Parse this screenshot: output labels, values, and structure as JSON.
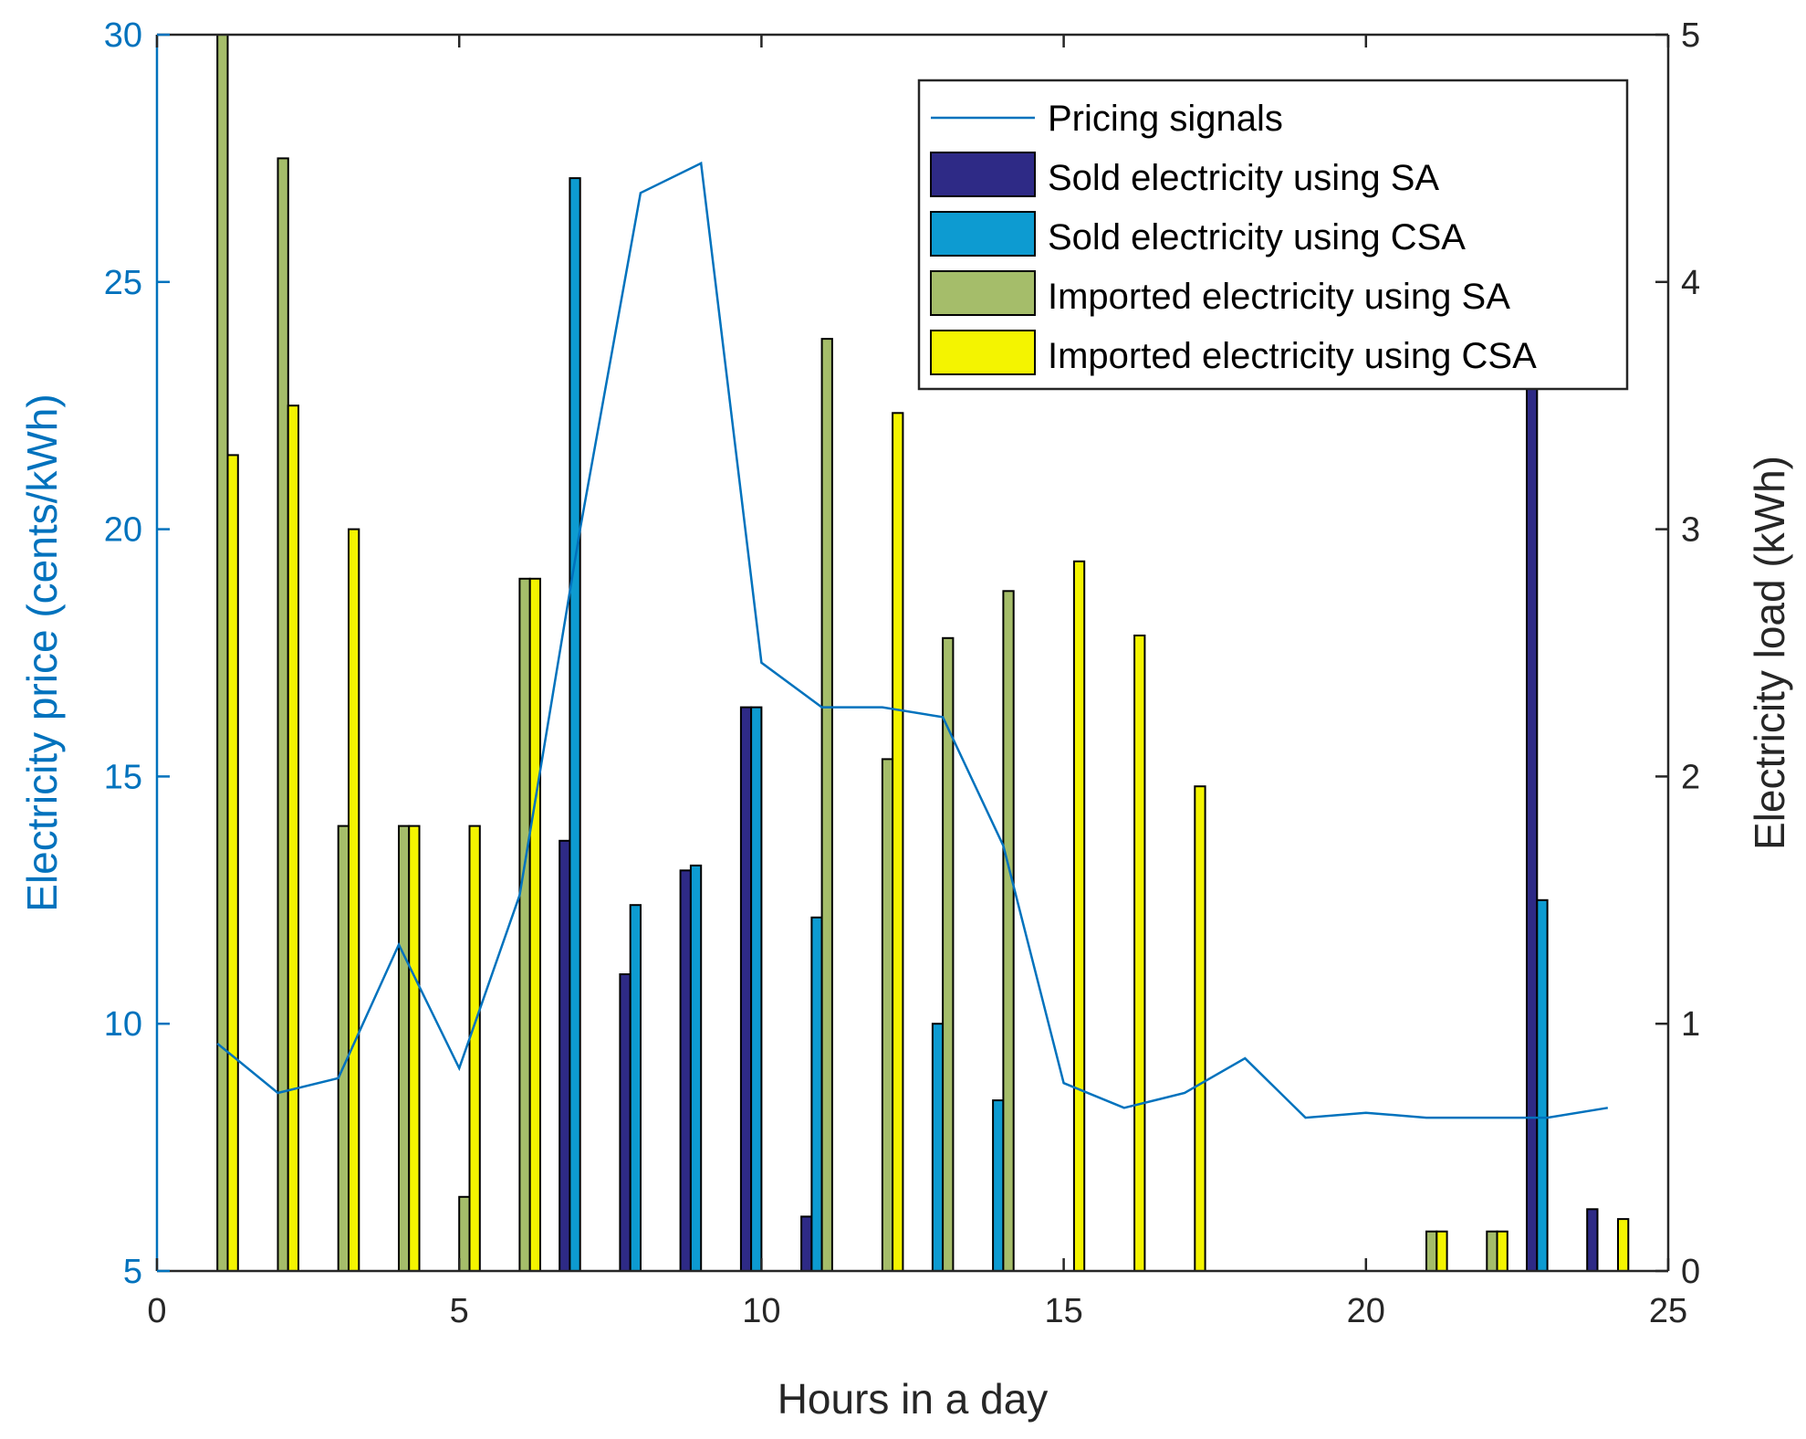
{
  "chart_data": {
    "type": "bar+line",
    "title": "",
    "xlabel": "Hours in a day",
    "ylabel_left": "Electricity price (cents/kWh)",
    "ylabel_right": "Electricity load (kWh)",
    "xlim": [
      0,
      25
    ],
    "ylim_left": [
      5,
      30
    ],
    "ylim_right": [
      0,
      5
    ],
    "x_ticks": [
      "0",
      "5",
      "10",
      "15",
      "20",
      "25"
    ],
    "y_left_ticks": [
      "5",
      "10",
      "15",
      "20",
      "25",
      "30"
    ],
    "y_right_ticks": [
      "0",
      "1",
      "2",
      "3",
      "4",
      "5"
    ],
    "legend_position": "top-right",
    "pricing": {
      "name": "Pricing signals",
      "color": "#0072bd",
      "x": [
        1,
        2,
        3,
        4,
        5,
        6,
        7,
        8,
        9,
        10,
        11,
        12,
        13,
        14,
        15,
        16,
        17,
        18,
        19,
        20,
        21,
        22,
        23,
        24
      ],
      "y": [
        9.6,
        8.6,
        8.9,
        11.6,
        9.1,
        12.6,
        20.0,
        26.8,
        27.4,
        17.3,
        16.4,
        16.4,
        16.2,
        13.6,
        8.8,
        8.3,
        8.6,
        9.3,
        8.1,
        8.2,
        8.1,
        8.1,
        8.1,
        8.3
      ]
    },
    "categories": [
      1,
      2,
      3,
      4,
      5,
      6,
      7,
      8,
      9,
      10,
      11,
      12,
      13,
      14,
      15,
      16,
      17,
      18,
      19,
      20,
      21,
      22,
      23,
      24
    ],
    "series": [
      {
        "name": "Sold electricity using SA",
        "color": "#2e2a86",
        "values": [
          0,
          0,
          0,
          0,
          0,
          0,
          1.74,
          1.2,
          1.62,
          2.28,
          0.22,
          0,
          0,
          0,
          0,
          0,
          0,
          0,
          0,
          0,
          0,
          0,
          3.6,
          0.25
        ]
      },
      {
        "name": "Sold electricity using CSA",
        "color": "#0d9bd1",
        "values": [
          0,
          0,
          0,
          0,
          0,
          0,
          4.42,
          1.48,
          1.64,
          2.28,
          1.43,
          0,
          1.0,
          0.69,
          0,
          0,
          0,
          0,
          0,
          0,
          0,
          0,
          1.5,
          0
        ]
      },
      {
        "name": "Imported electricity using SA",
        "color": "#a5bd6a",
        "values": [
          5.0,
          4.5,
          1.8,
          1.8,
          0.3,
          2.8,
          0,
          0,
          0,
          0,
          3.77,
          2.07,
          2.56,
          2.75,
          0,
          0,
          0,
          0,
          0,
          0,
          0.16,
          0.16,
          0,
          0
        ]
      },
      {
        "name": "Imported electricity using CSA",
        "color": "#f4f400",
        "values": [
          3.3,
          3.5,
          3.0,
          1.8,
          1.8,
          2.8,
          0,
          0,
          0,
          0,
          0,
          3.47,
          0,
          0,
          2.87,
          2.57,
          1.96,
          0,
          0,
          0,
          0.16,
          0.16,
          0,
          0.21
        ]
      }
    ]
  }
}
